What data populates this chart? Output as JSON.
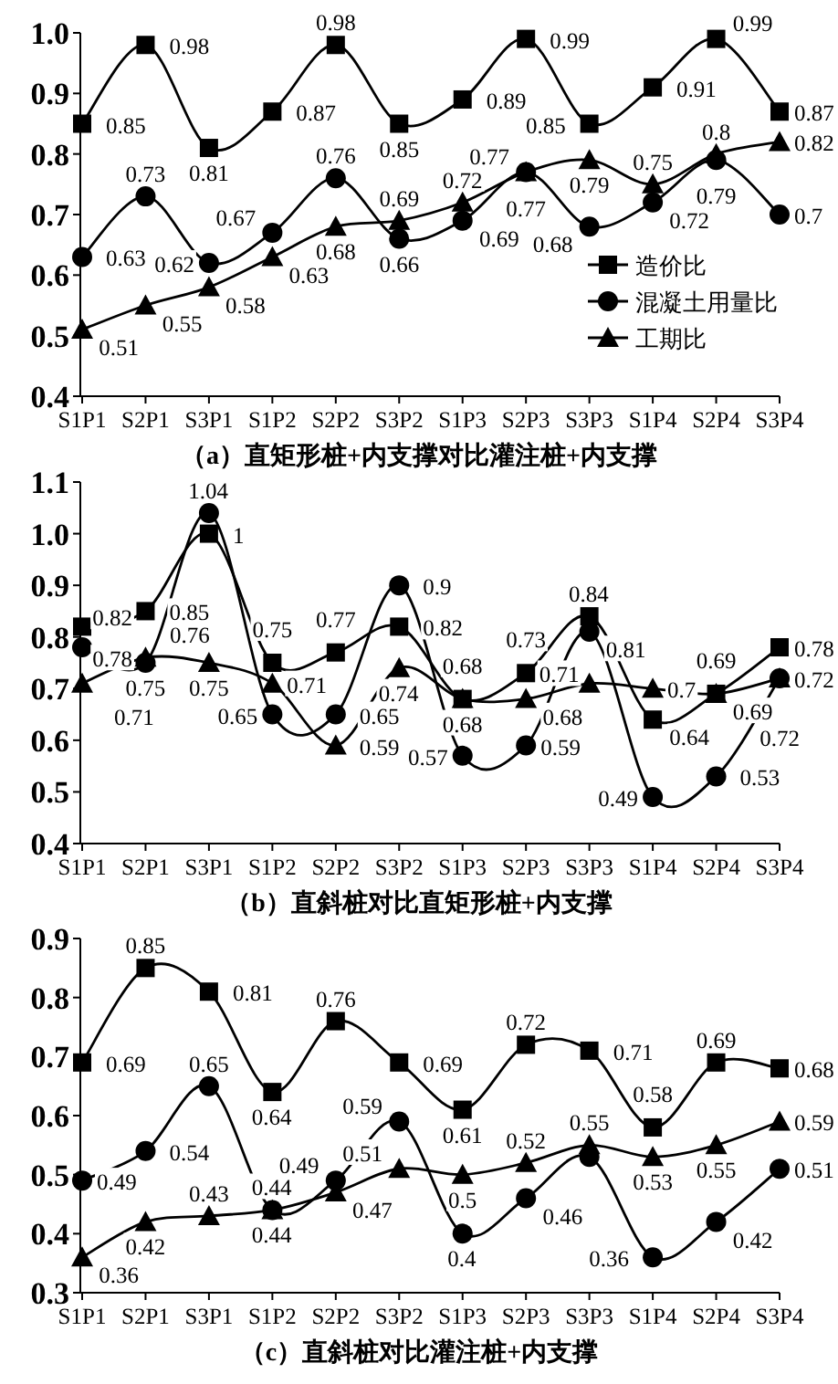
{
  "chart_data": [
    {
      "type": "line",
      "title": "（a）直矩形桩+内支撑对比灌注桩+内支撑",
      "categories": [
        "S1P1",
        "S2P1",
        "S3P1",
        "S1P2",
        "S2P2",
        "S3P2",
        "S1P3",
        "S2P3",
        "S3P3",
        "S1P4",
        "S2P4",
        "S3P4"
      ],
      "ylim": [
        0.4,
        1.0
      ],
      "yticks": [
        {
          "value": 0.4,
          "label": "0.4"
        },
        {
          "value": 0.5,
          "label": "0.5"
        },
        {
          "value": 0.6,
          "label": "0.6"
        },
        {
          "value": 0.7,
          "label": "0.7"
        },
        {
          "value": 0.8,
          "label": "0.8"
        },
        {
          "value": 0.9,
          "label": "0.9"
        },
        {
          "value": 1.0,
          "label": "1.0"
        }
      ],
      "legend": "bottom right",
      "data_labels": true,
      "series": [
        {
          "name": "造价比",
          "color": "#000000",
          "marker": "square",
          "values": [
            0.85,
            0.98,
            0.81,
            0.87,
            0.98,
            0.85,
            0.89,
            0.99,
            0.85,
            0.91,
            0.99,
            0.87
          ]
        },
        {
          "name": "混凝土用量比",
          "color": "#000000",
          "marker": "circle",
          "values": [
            0.63,
            0.73,
            0.62,
            0.67,
            0.76,
            0.66,
            0.69,
            0.77,
            0.68,
            0.72,
            0.79,
            0.7
          ]
        },
        {
          "name": "工期比",
          "color": "#000000",
          "marker": "triangle",
          "values": [
            0.51,
            0.55,
            0.58,
            0.63,
            0.68,
            0.69,
            0.72,
            0.77,
            0.79,
            0.75,
            0.8,
            0.82
          ]
        }
      ]
    },
    {
      "type": "line",
      "title": "（b）直斜桩对比直矩形桩+内支撑",
      "categories": [
        "S1P1",
        "S2P1",
        "S3P1",
        "S1P2",
        "S2P2",
        "S3P2",
        "S1P3",
        "S2P3",
        "S3P3",
        "S1P4",
        "S2P4",
        "S3P4"
      ],
      "ylim": [
        0.4,
        1.1
      ],
      "yticks": [
        {
          "value": 0.4,
          "label": "0.4"
        },
        {
          "value": 0.5,
          "label": "0.5"
        },
        {
          "value": 0.6,
          "label": "0.6"
        },
        {
          "value": 0.7,
          "label": "0.7"
        },
        {
          "value": 0.8,
          "label": "0.8"
        },
        {
          "value": 0.9,
          "label": "0.9"
        },
        {
          "value": 1.0,
          "label": "1.0"
        },
        {
          "value": 1.1,
          "label": "1.1"
        }
      ],
      "data_labels": true,
      "series": [
        {
          "color": "#000000",
          "marker": "square",
          "values": [
            0.82,
            0.85,
            1,
            0.75,
            0.77,
            0.82,
            0.68,
            0.73,
            0.84,
            0.64,
            0.69,
            0.78
          ]
        },
        {
          "color": "#000000",
          "marker": "circle",
          "values": [
            0.78,
            0.75,
            1.04,
            0.65,
            0.65,
            0.9,
            0.57,
            0.59,
            0.81,
            0.49,
            0.53,
            0.72
          ]
        },
        {
          "color": "#000000",
          "marker": "triangle",
          "values": [
            0.71,
            0.76,
            0.75,
            0.71,
            0.59,
            0.74,
            0.68,
            0.68,
            0.71,
            0.7,
            0.69,
            0.72
          ]
        }
      ]
    },
    {
      "type": "line",
      "title": "（c）直斜桩对比灌注桩+内支撑",
      "categories": [
        "S1P1",
        "S2P1",
        "S3P1",
        "S1P2",
        "S2P2",
        "S3P2",
        "S1P3",
        "S2P3",
        "S3P3",
        "S1P4",
        "S2P4",
        "S3P4"
      ],
      "ylim": [
        0.3,
        0.9
      ],
      "yticks": [
        {
          "value": 0.3,
          "label": "0.3"
        },
        {
          "value": 0.4,
          "label": "0.4"
        },
        {
          "value": 0.5,
          "label": "0.5"
        },
        {
          "value": 0.6,
          "label": "0.6"
        },
        {
          "value": 0.7,
          "label": "0.7"
        },
        {
          "value": 0.8,
          "label": "0.8"
        },
        {
          "value": 0.9,
          "label": "0.9"
        }
      ],
      "series": [
        {
          "color": "#000000",
          "marker": "square",
          "values": [
            0.69,
            0.85,
            0.81,
            0.64,
            0.76,
            0.69,
            0.61,
            0.72,
            0.71,
            0.58,
            0.69,
            0.68
          ],
          "value_labels": [
            "0.69",
            "0.85",
            "0.81",
            "0.64",
            "0.76",
            "0.69",
            "0.61",
            "0.72",
            "0.71",
            "0.58",
            "0.69",
            "0.68"
          ]
        },
        {
          "color": "#000000",
          "marker": "circle",
          "values": [
            0.49,
            0.54,
            0.65,
            0.44,
            0.49,
            0.59,
            0.4,
            0.46,
            0.53,
            0.36,
            0.42,
            0.51
          ],
          "value_labels": [
            "0.49",
            "0.54",
            "0.65",
            "0.44",
            "0.49",
            "0.59",
            "0.4",
            "0.46",
            null,
            "0.36",
            "0.42",
            "0.51"
          ]
        },
        {
          "color": "#000000",
          "marker": "triangle",
          "values": [
            0.36,
            0.42,
            0.43,
            0.44,
            0.47,
            0.51,
            0.5,
            0.52,
            0.55,
            0.53,
            0.55,
            0.59
          ],
          "value_labels": [
            "0.36",
            "0.42",
            "0.43",
            "0.44",
            "0.47",
            "0.51",
            "0.5",
            "0.52",
            "0.55",
            "0.53",
            "0.55",
            "0.59"
          ]
        }
      ]
    }
  ]
}
